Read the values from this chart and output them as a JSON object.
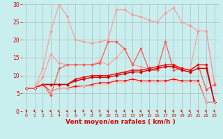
{
  "x": [
    0,
    1,
    2,
    3,
    4,
    5,
    6,
    7,
    8,
    9,
    10,
    11,
    12,
    13,
    14,
    15,
    16,
    17,
    18,
    19,
    20,
    21,
    22,
    23
  ],
  "series": [
    {
      "color": "#ff9999",
      "lw": 0.8,
      "marker": "D",
      "ms": 2.0,
      "y": [
        6.5,
        6.5,
        12.0,
        22.5,
        30.0,
        26.5,
        20.0,
        19.5,
        19.0,
        19.5,
        20.0,
        28.5,
        28.5,
        27.0,
        26.5,
        25.5,
        25.0,
        27.5,
        29.0,
        25.0,
        24.0,
        22.5,
        22.5,
        8.0
      ]
    },
    {
      "color": "#ff9999",
      "lw": 0.8,
      "marker": "D",
      "ms": 2.0,
      "y": [
        6.5,
        6.5,
        9.5,
        16.0,
        13.5,
        13.0,
        13.0,
        13.0,
        13.0,
        14.0,
        13.0,
        15.0,
        17.5,
        13.0,
        12.5,
        12.0,
        11.5,
        12.5,
        12.5,
        12.0,
        11.5,
        22.5,
        22.5,
        7.5
      ]
    },
    {
      "color": "#ff5555",
      "lw": 0.9,
      "marker": "D",
      "ms": 2.0,
      "y": [
        6.5,
        6.5,
        7.5,
        4.5,
        12.0,
        13.0,
        13.0,
        13.0,
        13.0,
        13.5,
        19.5,
        19.5,
        17.5,
        13.0,
        17.5,
        11.5,
        11.5,
        19.5,
        11.5,
        12.0,
        11.5,
        13.0,
        6.0,
        7.5
      ]
    },
    {
      "color": "#ff0000",
      "lw": 1.0,
      "marker": "D",
      "ms": 2.0,
      "y": [
        6.5,
        6.5,
        7.5,
        7.5,
        7.5,
        7.5,
        9.0,
        9.5,
        10.0,
        10.0,
        10.0,
        10.5,
        11.0,
        11.5,
        11.5,
        12.0,
        12.5,
        13.0,
        13.0,
        12.0,
        11.5,
        13.0,
        13.0,
        2.5
      ]
    },
    {
      "color": "#cc0000",
      "lw": 1.0,
      "marker": "D",
      "ms": 2.0,
      "y": [
        6.5,
        6.5,
        7.5,
        7.5,
        7.5,
        7.5,
        8.5,
        9.0,
        9.5,
        9.5,
        9.5,
        10.0,
        10.5,
        11.0,
        11.0,
        11.5,
        12.0,
        12.5,
        12.5,
        11.5,
        11.0,
        12.0,
        12.0,
        2.5
      ]
    },
    {
      "color": "#ff0000",
      "lw": 0.8,
      "marker": "D",
      "ms": 1.8,
      "y": [
        6.5,
        6.5,
        7.5,
        5.5,
        6.5,
        6.5,
        7.0,
        7.0,
        7.5,
        8.0,
        8.0,
        8.5,
        8.5,
        9.0,
        8.5,
        8.5,
        8.5,
        8.5,
        9.0,
        8.5,
        8.5,
        8.5,
        2.5,
        2.5
      ]
    },
    {
      "color": "#ffbbbb",
      "lw": 0.7,
      "marker": "D",
      "ms": 1.5,
      "y": [
        6.5,
        6.5,
        7.0,
        5.5,
        6.5,
        6.5,
        6.5,
        7.0,
        7.0,
        7.5,
        7.5,
        8.0,
        8.0,
        8.5,
        8.0,
        8.0,
        8.0,
        8.0,
        8.5,
        8.0,
        8.0,
        8.0,
        2.5,
        2.5
      ]
    }
  ],
  "xlabel": "Vent moyen/en rafales ( km/h )",
  "xlim": [
    0,
    23
  ],
  "ylim": [
    0,
    30
  ],
  "yticks": [
    0,
    5,
    10,
    15,
    20,
    25,
    30
  ],
  "xticks": [
    0,
    1,
    2,
    3,
    4,
    5,
    6,
    7,
    8,
    9,
    10,
    11,
    12,
    13,
    14,
    15,
    16,
    17,
    18,
    19,
    20,
    21,
    22,
    23
  ],
  "bg_color": "#c8eeee",
  "grid_color": "#b0b0b0",
  "tick_color": "#dd0000",
  "label_color": "#dd0000",
  "wind_dirs": [
    0,
    45,
    60,
    60,
    90,
    90,
    45,
    45,
    45,
    45,
    45,
    45,
    45,
    45,
    45,
    45,
    45,
    45,
    45,
    45,
    45,
    45,
    45,
    135
  ]
}
